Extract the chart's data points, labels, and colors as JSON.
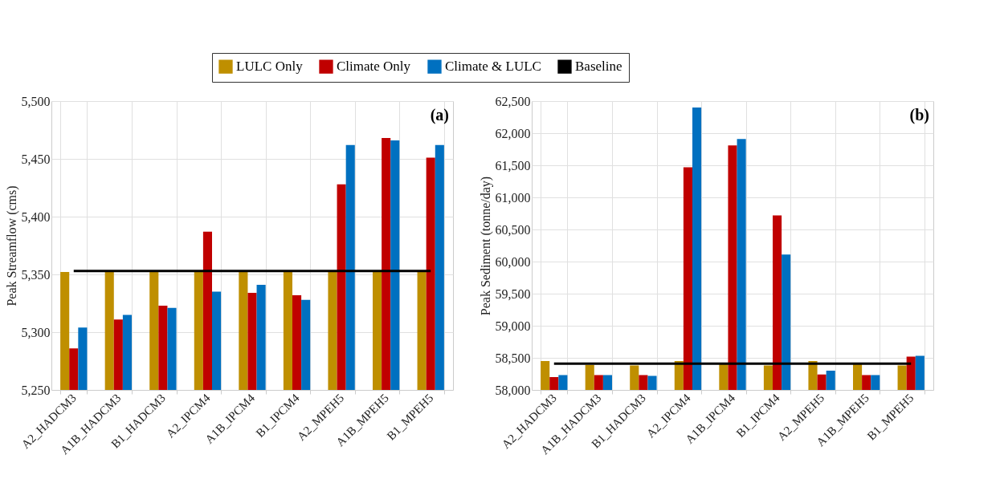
{
  "chart_data": [
    {
      "type": "bar",
      "ylabel": "Peak Streamflow (cms)",
      "annotations": [
        "(a)"
      ],
      "categories": [
        "A2_HADCM3",
        "A1B_HADCM3",
        "B1_HADCM3",
        "A2_IPCM4",
        "A1B_IPCM4",
        "B1_IPCM4",
        "A2_MPEH5",
        "A1B_MPEH5",
        "B1_MPEH5"
      ],
      "series": [
        {
          "name": "LULC Only",
          "color": "#bf8f00",
          "values": [
            5352,
            5352,
            5352,
            5352,
            5352,
            5352,
            5352,
            5352,
            5352
          ]
        },
        {
          "name": "Climate Only",
          "color": "#c00000",
          "values": [
            5286,
            5311,
            5323,
            5387,
            5334,
            5332,
            5428,
            5468,
            5451
          ]
        },
        {
          "name": "Climate & LULC",
          "color": "#0070c0",
          "values": [
            5304,
            5315,
            5321,
            5335,
            5341,
            5328,
            5462,
            5466,
            5462
          ]
        },
        {
          "name": "Baseline",
          "color": "#000000",
          "type": "line",
          "values": [
            5353,
            5353,
            5353,
            5353,
            5353,
            5353,
            5353,
            5353,
            5353
          ]
        }
      ],
      "ylim": [
        5250,
        5500
      ],
      "yticks": [
        {
          "value": 5250,
          "label": "5,250"
        },
        {
          "value": 5300,
          "label": "5,300"
        },
        {
          "value": 5350,
          "label": "5,350"
        },
        {
          "value": 5400,
          "label": "5,400"
        },
        {
          "value": 5450,
          "label": "5,450"
        },
        {
          "value": 5500,
          "label": "5,500"
        }
      ],
      "grid": true,
      "legend": "top"
    },
    {
      "type": "bar",
      "ylabel": "Peak Sediment (tonne/day)",
      "annotations": [
        "(b)"
      ],
      "categories": [
        "A2_HADCM3",
        "A1B_HADCM3",
        "B1_HADCM3",
        "A2_IPCM4",
        "A1B_IPCM4",
        "B1_IPCM4",
        "A2_MPEH5",
        "A1B_MPEH5",
        "B1_MPEH5"
      ],
      "series": [
        {
          "name": "LULC Only",
          "color": "#bf8f00",
          "values": [
            58450,
            58390,
            58380,
            58450,
            58400,
            58380,
            58450,
            58400,
            58380
          ]
        },
        {
          "name": "Climate Only",
          "color": "#c00000",
          "values": [
            58200,
            58230,
            58230,
            61470,
            61810,
            60720,
            58240,
            58230,
            58520
          ]
        },
        {
          "name": "Climate & LULC",
          "color": "#0070c0",
          "values": [
            58230,
            58230,
            58220,
            62400,
            61910,
            60110,
            58300,
            58230,
            58530
          ]
        },
        {
          "name": "Baseline",
          "color": "#000000",
          "type": "line",
          "values": [
            58410,
            58410,
            58410,
            58410,
            58410,
            58410,
            58410,
            58410,
            58410
          ]
        }
      ],
      "ylim": [
        58000,
        62500
      ],
      "yticks": [
        {
          "value": 58000,
          "label": "58,000"
        },
        {
          "value": 58500,
          "label": "58,500"
        },
        {
          "value": 59000,
          "label": "59,000"
        },
        {
          "value": 59500,
          "label": "59,500"
        },
        {
          "value": 60000,
          "label": "60,000"
        },
        {
          "value": 60500,
          "label": "60,500"
        },
        {
          "value": 61000,
          "label": "61,000"
        },
        {
          "value": 61500,
          "label": "61,500"
        },
        {
          "value": 62000,
          "label": "62,000"
        },
        {
          "value": 62500,
          "label": "62,500"
        }
      ],
      "grid": true,
      "legend": "top"
    }
  ]
}
